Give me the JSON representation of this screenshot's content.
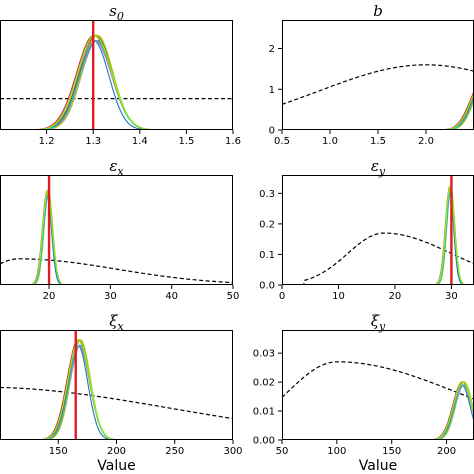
{
  "figure": {
    "xlabel": "Value"
  },
  "colors": {
    "truth": "#e01b24",
    "prior": "#000000",
    "chains": [
      "#1f77b4",
      "#ff7f0e",
      "#2ca02c",
      "#d62728",
      "#9467bd",
      "#8c564b",
      "#e377c2",
      "#bcbd22",
      "#17becf",
      "#7fff00"
    ]
  },
  "chart_data": [
    {
      "type": "line",
      "title": "s₀",
      "subscript": "0",
      "base": "s",
      "xlim": [
        1.1,
        1.6
      ],
      "ylim": [
        0,
        4.2
      ],
      "xticks": [
        1.2,
        1.3,
        1.4,
        1.5,
        1.6
      ],
      "xtick_labels": [
        "1.2",
        "1.3",
        "1.4",
        "1.5",
        "1.6"
      ],
      "yticks": [],
      "ytick_labels": [],
      "truth": 1.3,
      "posterior": {
        "mean": 1.305,
        "sd": 0.035,
        "peak": 3.6
      },
      "prior": {
        "shape": "flat",
        "level": 1.2
      },
      "show_xlabel": false
    },
    {
      "type": "line",
      "title": "b",
      "subscript": "",
      "base": "b",
      "xlim": [
        0.5,
        2.5
      ],
      "ylim": [
        0,
        2.7
      ],
      "xticks": [
        0.5,
        1.0,
        1.5,
        2.0
      ],
      "xtick_labels": [
        "0.5",
        "1.0",
        "1.5",
        "2.0"
      ],
      "yticks": [
        0,
        1,
        2
      ],
      "ytick_labels": [
        "0",
        "1",
        "2"
      ],
      "truth": null,
      "posterior": {
        "mean": 2.6,
        "sd": 0.12,
        "peak": 1.2
      },
      "prior": {
        "shape": "gauss",
        "mode": 2.0,
        "sd": 1.1,
        "peak": 1.6
      },
      "show_xlabel": false
    },
    {
      "type": "line",
      "title": "εₓ",
      "subscript": "x",
      "base": "ε",
      "xlim": [
        12,
        50
      ],
      "ylim": [
        0,
        0.42
      ],
      "xticks": [
        20,
        30,
        40,
        50
      ],
      "xtick_labels": [
        "20",
        "30",
        "40",
        "50"
      ],
      "yticks": [],
      "ytick_labels": [],
      "truth": 20,
      "posterior": {
        "mean": 19.8,
        "sd": 0.75,
        "peak": 0.36
      },
      "prior": {
        "shape": "lognorm",
        "mode": 15,
        "sd": 16,
        "peak": 0.1,
        "start": 5
      },
      "show_xlabel": false
    },
    {
      "type": "line",
      "title": "εᵧ",
      "subscript": "y",
      "base": "ε",
      "xlim": [
        0,
        34
      ],
      "ylim": [
        0,
        0.36
      ],
      "xticks": [
        0,
        10,
        20,
        30
      ],
      "xtick_labels": [
        "0",
        "10",
        "20",
        "30"
      ],
      "yticks": [
        0.0,
        0.1,
        0.2,
        0.3
      ],
      "ytick_labels": [
        "0.0",
        "0.1",
        "0.2",
        "0.3"
      ],
      "truth": 30,
      "posterior": {
        "mean": 29.8,
        "sd": 0.75,
        "peak": 0.32
      },
      "prior": {
        "shape": "lognorm",
        "mode": 18,
        "sd": 12,
        "peak": 0.17,
        "start": 4
      },
      "show_xlabel": false
    },
    {
      "type": "line",
      "title": "ξₓ",
      "subscript": "x",
      "base": "ξ",
      "xlim": [
        100,
        300
      ],
      "ylim": [
        0,
        0.075
      ],
      "xticks": [
        150,
        200,
        250,
        300
      ],
      "xtick_labels": [
        "150",
        "200",
        "250",
        "300"
      ],
      "yticks": [],
      "ytick_labels": [],
      "truth": 165,
      "posterior": {
        "mean": 168,
        "sd": 9,
        "peak": 0.068
      },
      "prior": {
        "shape": "lognorm",
        "mode": 85,
        "sd": 160,
        "peak": 0.036,
        "start": 0
      },
      "show_xlabel": true
    },
    {
      "type": "line",
      "title": "ξᵧ",
      "subscript": "y",
      "base": "ξ",
      "xlim": [
        50,
        225
      ],
      "ylim": [
        0,
        0.038
      ],
      "xticks": [
        50,
        100,
        150,
        200
      ],
      "xtick_labels": [
        "50",
        "100",
        "150",
        "200"
      ],
      "yticks": [
        0.0,
        0.01,
        0.02,
        0.03
      ],
      "ytick_labels": [
        "0.00",
        "0.01",
        "0.02",
        "0.03"
      ],
      "truth": null,
      "posterior": {
        "mean": 215,
        "sd": 8,
        "peak": 0.02
      },
      "prior": {
        "shape": "lognorm",
        "mode": 100,
        "sd": 110,
        "peak": 0.027,
        "start": 0
      },
      "show_xlabel": true
    }
  ]
}
